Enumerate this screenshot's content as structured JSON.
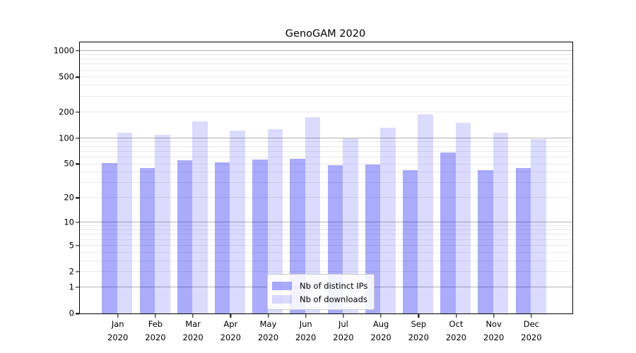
{
  "chart_data": {
    "type": "bar",
    "title": "GenoGAM 2020",
    "categories": [
      "Jan",
      "Feb",
      "Mar",
      "Apr",
      "May",
      "Jun",
      "Jul",
      "Aug",
      "Sep",
      "Oct",
      "Nov",
      "Dec"
    ],
    "category_year": "2020",
    "series": [
      {
        "name": "Nb of distinct IPs",
        "color": "rgba(0,0,245,0.33)",
        "values": [
          51,
          45,
          55,
          52,
          56,
          57,
          48,
          49,
          42,
          68,
          42,
          45
        ]
      },
      {
        "name": "Nb of downloads",
        "color": "rgba(0,0,245,0.14)",
        "values": [
          115,
          109,
          154,
          120,
          125,
          174,
          99,
          130,
          185,
          148,
          114,
          96
        ]
      }
    ],
    "y_axis": {
      "scale": "log(1+v) symlog-like",
      "tick_values": [
        0,
        1,
        2,
        5,
        10,
        20,
        50,
        100,
        200,
        500,
        1000
      ],
      "tick_labels": [
        "0",
        "1",
        "2",
        "5",
        "10",
        "20",
        "50",
        "100",
        "200",
        "500",
        "1000"
      ],
      "major_grid_values": [
        1,
        10,
        100,
        1000
      ],
      "minor_grid_values": [
        2,
        3,
        4,
        5,
        6,
        7,
        8,
        9,
        20,
        30,
        40,
        50,
        60,
        70,
        80,
        90,
        200,
        300,
        400,
        500,
        600,
        700,
        800,
        900
      ],
      "ymin": 0,
      "ymax": 1240
    },
    "xlabel": "",
    "ylabel": "",
    "grid": true,
    "legend": {
      "position": "lower center inside plot",
      "entries": [
        "Nb of distinct IPs",
        "Nb of downloads"
      ]
    },
    "colors": {
      "major_grid": "#b2b2b2",
      "minor_grid": "#e9e9e9",
      "axis_spine": "#000000",
      "background": "#ffffff",
      "legend_border": "#cccccc"
    }
  }
}
